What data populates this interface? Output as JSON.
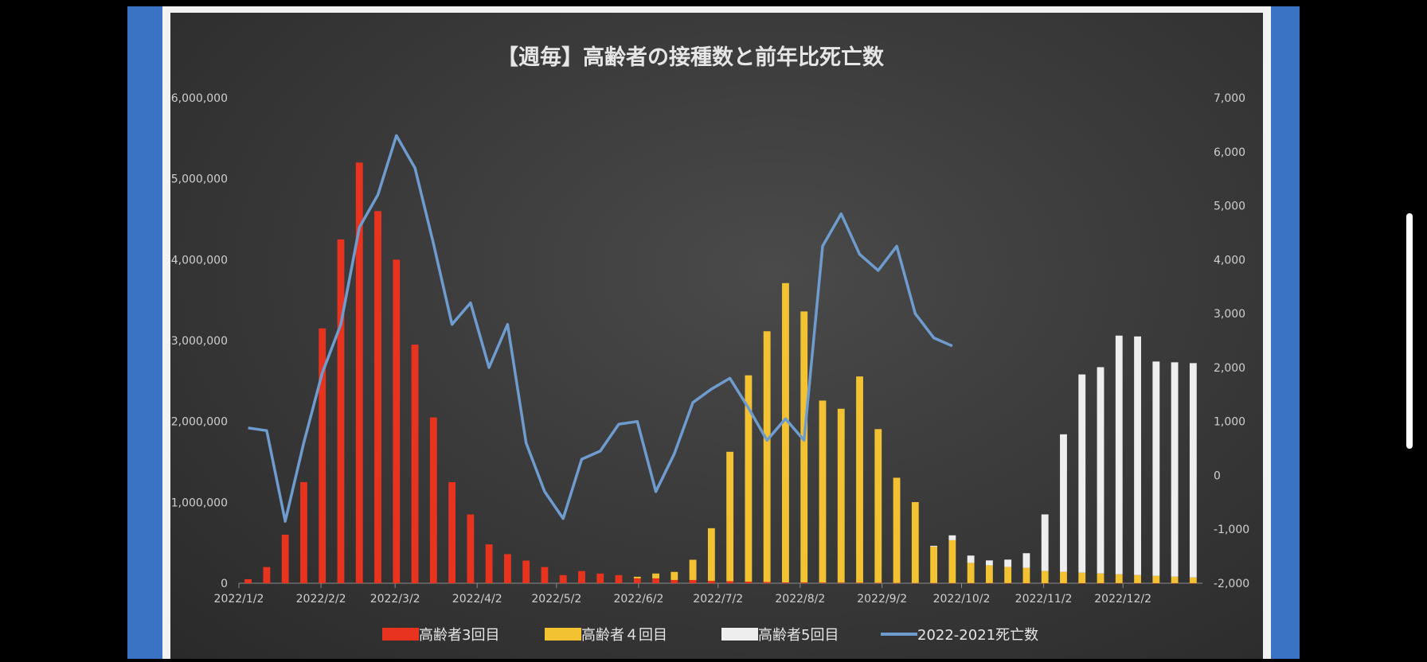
{
  "chart_data": {
    "type": "bar",
    "title": "【週毎】高齢者の接種数と前年比死亡数",
    "y_left": {
      "min": 0,
      "max": 6000000,
      "ticks": [
        "0",
        "1,000,000",
        "2,000,000",
        "3,000,000",
        "4,000,000",
        "5,000,000",
        "6,000,000"
      ]
    },
    "y_right": {
      "min": -2000,
      "max": 7000,
      "ticks": [
        "-2,000",
        "-1,000",
        "0",
        "1,000",
        "2,000",
        "3,000",
        "4,000",
        "5,000",
        "6,000",
        "7,000"
      ]
    },
    "x_tick_labels": [
      "2022/1/2",
      "2022/2/2",
      "2022/3/2",
      "2022/4/2",
      "2022/5/2",
      "2022/6/2",
      "2022/7/2",
      "2022/8/2",
      "2022/9/2",
      "2022/10/2",
      "2022/11/2",
      "2022/12/2"
    ],
    "week_count": 52,
    "series": [
      {
        "name": "高齢者3回目",
        "color": "#e8331f",
        "kind": "bar",
        "values": [
          50000,
          200000,
          600000,
          1250000,
          3150000,
          4250000,
          5200000,
          4600000,
          4000000,
          2950000,
          2050000,
          1250000,
          850000,
          480000,
          360000,
          280000,
          200000,
          100000,
          150000,
          120000,
          100000,
          60000,
          60000,
          40000,
          40000,
          30000,
          25000,
          20000,
          15000,
          10000,
          10000,
          8000,
          7000,
          6000,
          5000,
          4000,
          3000,
          3000,
          2000,
          2000,
          2000,
          2000,
          1000,
          1000,
          1000,
          1000,
          1000,
          1000,
          1000,
          1000,
          1000,
          1000
        ]
      },
      {
        "name": "高齢者４回目",
        "color": "#f2c233",
        "kind": "bar",
        "values": [
          0,
          0,
          0,
          0,
          0,
          0,
          0,
          0,
          0,
          0,
          0,
          0,
          0,
          0,
          0,
          0,
          0,
          0,
          0,
          0,
          0,
          20000,
          60000,
          100000,
          250000,
          650000,
          1600000,
          2550000,
          3100000,
          3700000,
          3350000,
          2250000,
          2150000,
          2550000,
          1900000,
          1300000,
          1000000,
          450000,
          530000,
          250000,
          220000,
          200000,
          190000,
          150000,
          140000,
          130000,
          120000,
          110000,
          100000,
          90000,
          80000,
          70000
        ]
      },
      {
        "name": "高齢者5回目",
        "color": "#eeeeee",
        "kind": "bar",
        "values": [
          0,
          0,
          0,
          0,
          0,
          0,
          0,
          0,
          0,
          0,
          0,
          0,
          0,
          0,
          0,
          0,
          0,
          0,
          0,
          0,
          0,
          0,
          0,
          0,
          0,
          0,
          0,
          0,
          0,
          0,
          0,
          0,
          0,
          0,
          0,
          0,
          0,
          10000,
          60000,
          90000,
          60000,
          90000,
          180000,
          700000,
          1700000,
          2450000,
          2550000,
          2950000,
          2950000,
          2650000,
          2650000,
          2650000
        ]
      },
      {
        "name": "2022-2021死亡数",
        "color": "#6f9ccf",
        "kind": "line",
        "values": [
          880,
          830,
          -850,
          600,
          1900,
          2800,
          4600,
          5200,
          6300,
          5700,
          4300,
          2800,
          3200,
          2000,
          2800,
          600,
          -300,
          -800,
          300,
          450,
          950,
          1000,
          -300,
          400,
          1350,
          1600,
          1800,
          1250,
          650,
          1050,
          650,
          4250,
          4850,
          4100,
          3800,
          4250,
          3000,
          2550,
          2400
        ]
      }
    ],
    "legend": [
      "高齢者3回目",
      "高齢者４回目",
      "高齢者5回目",
      "2022-2021死亡数"
    ],
    "legend_position": "bottom",
    "grid": false
  }
}
